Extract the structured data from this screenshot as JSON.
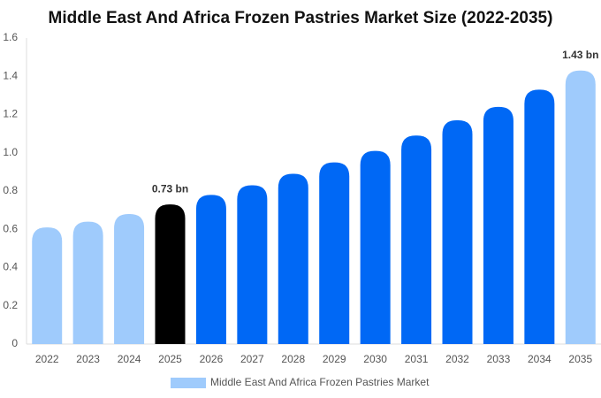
{
  "chart_data": {
    "type": "bar",
    "title": "Middle East And Africa Frozen Pastries Market Size (2022-2035)",
    "categories": [
      "2022",
      "2023",
      "2024",
      "2025",
      "2026",
      "2027",
      "2028",
      "2029",
      "2030",
      "2031",
      "2032",
      "2033",
      "2034",
      "2035"
    ],
    "series": [
      {
        "name": "Middle East And Africa Frozen Pastries Market",
        "color": "#9fcbfc",
        "values": [
          0.61,
          0.64,
          0.68,
          0.73,
          0.78,
          0.83,
          0.89,
          0.95,
          1.01,
          1.09,
          1.17,
          1.24,
          1.33,
          1.43
        ],
        "value_labels": [
          null,
          null,
          null,
          "0.73 bn",
          null,
          null,
          null,
          null,
          null,
          null,
          null,
          null,
          null,
          "1.43 bn"
        ],
        "colors": [
          "#9fcbfc",
          "#9fcbfc",
          "#9fcbfc",
          "#000000",
          "#0068f5",
          "#0068f5",
          "#0068f5",
          "#0068f5",
          "#0068f5",
          "#0068f5",
          "#0068f5",
          "#0068f5",
          "#0068f5",
          "#9fcbfc"
        ]
      }
    ],
    "ylim": [
      0,
      1.6
    ],
    "yticks": [
      0,
      0.2,
      0.4,
      0.6,
      0.8,
      {
        "value": 1,
        "label": "1.0"
      },
      1.2,
      1.4,
      1.6
    ],
    "grid": false,
    "legend": "bottom"
  }
}
